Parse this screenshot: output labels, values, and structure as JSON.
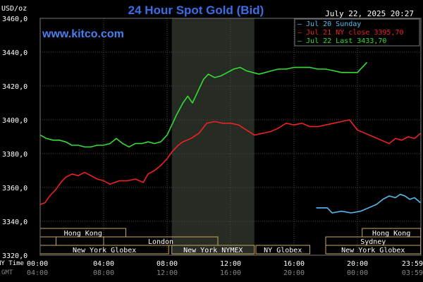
{
  "chart_data": {
    "type": "line",
    "title": "24 Hour Spot Gold (Bid)",
    "timestamp": "July 22, 2025 20:27",
    "watermark": "www.kitco.com",
    "ylabel": "USD/oz",
    "xlabel_top": "NY Time",
    "xlabel_bottom": "GMT",
    "ylim": [
      3320,
      3460
    ],
    "xlim": [
      0,
      24
    ],
    "grid": true,
    "y_ticks": [
      "3320,0",
      "3340,0",
      "3360,0",
      "3380,0",
      "3400,0",
      "3420,0",
      "3440,0",
      "3460,0"
    ],
    "y_tick_values": [
      3320,
      3340,
      3360,
      3380,
      3400,
      3420,
      3440,
      3460
    ],
    "x_ticks_ny": [
      "00:00",
      "04:00",
      "08:00",
      "12:00",
      "16:00",
      "20:00",
      "23:59"
    ],
    "x_ticks_gmt": [
      "04:00",
      "08:00",
      "12:00",
      "16:00",
      "20:00",
      "00:00",
      "03:59"
    ],
    "x_tick_values": [
      0,
      4,
      8,
      12,
      16,
      20,
      23.983
    ],
    "shaded_session": [
      8.3,
      13.5
    ],
    "legend": [
      {
        "text": "— Jul 20 Sunday",
        "color": "#55bbee"
      },
      {
        "text": "— Jul 21 NY close 3395,70",
        "color": "#ee2222"
      },
      {
        "text": "— Jul 22 Last 3433,70",
        "color": "#33dd33"
      }
    ],
    "series": [
      {
        "name": "Jul 20 Sunday",
        "color": "#55bbee",
        "x": [
          17.4,
          18.1,
          18.4,
          19.0,
          19.6,
          20.2,
          20.7,
          21.2,
          21.6,
          22.0,
          22.4,
          22.7,
          23.0,
          23.3,
          23.6,
          23.98
        ],
        "y": [
          3348,
          3348,
          3345,
          3346,
          3345,
          3346,
          3348,
          3350,
          3353,
          3355,
          3354,
          3356,
          3355,
          3353,
          3354,
          3351
        ]
      },
      {
        "name": "Jul 21 NY close 3395,70",
        "color": "#ee2222",
        "x": [
          0,
          0.3,
          0.6,
          1.0,
          1.3,
          1.6,
          2.0,
          2.4,
          2.8,
          3.2,
          3.6,
          4.0,
          4.4,
          5.0,
          5.5,
          6.0,
          6.5,
          6.8,
          7.2,
          7.6,
          8.0,
          8.3,
          8.7,
          9.0,
          9.5,
          10.0,
          10.5,
          11.0,
          11.5,
          12.0,
          12.5,
          13.0,
          13.5,
          14.0,
          14.5,
          15.0,
          15.5,
          16.0,
          16.5,
          17.0,
          17.5,
          18.0,
          18.5,
          19.0,
          19.5,
          20.0,
          20.5,
          21.0,
          21.5,
          22.0,
          22.4,
          22.8,
          23.2,
          23.6,
          23.98
        ],
        "y": [
          3350,
          3351,
          3355,
          3359,
          3363,
          3366,
          3368,
          3367,
          3369,
          3367,
          3365,
          3364,
          3362,
          3364,
          3364,
          3365,
          3363,
          3368,
          3370,
          3373,
          3377,
          3381,
          3385,
          3387,
          3389,
          3392,
          3398,
          3399,
          3398,
          3398,
          3397,
          3394,
          3391,
          3392,
          3393,
          3395,
          3398,
          3397,
          3398,
          3396,
          3396,
          3397,
          3398,
          3399,
          3400,
          3394,
          3392,
          3390,
          3388,
          3386,
          3389,
          3388,
          3390,
          3389,
          3392
        ]
      },
      {
        "name": "Jul 22 Last 3433,70",
        "color": "#33dd33",
        "x": [
          0,
          0.4,
          0.8,
          1.2,
          1.6,
          2.0,
          2.4,
          2.8,
          3.2,
          3.6,
          4.0,
          4.4,
          4.8,
          5.2,
          5.6,
          6.0,
          6.4,
          6.8,
          7.2,
          7.6,
          8.0,
          8.3,
          8.6,
          9.0,
          9.3,
          9.6,
          10.0,
          10.3,
          10.6,
          11.0,
          11.4,
          11.8,
          12.2,
          12.6,
          13.0,
          13.4,
          13.8,
          14.2,
          14.6,
          15.0,
          15.5,
          16.0,
          16.5,
          17.0,
          17.5,
          18.0,
          18.5,
          19.0,
          19.5,
          20.0,
          20.3,
          20.6
        ],
        "y": [
          3391,
          3389,
          3388,
          3388,
          3387,
          3385,
          3385,
          3384,
          3384,
          3385,
          3385,
          3386,
          3389,
          3386,
          3384,
          3386,
          3386,
          3387,
          3386,
          3387,
          3391,
          3397,
          3403,
          3410,
          3414,
          3410,
          3418,
          3424,
          3427,
          3425,
          3426,
          3428,
          3430,
          3431,
          3429,
          3428,
          3427,
          3428,
          3429,
          3430,
          3430,
          3431,
          3431,
          3431,
          3430,
          3430,
          3429,
          3428,
          3428,
          3428,
          3431,
          3434
        ]
      }
    ],
    "sessions": [
      {
        "label": "Hong Kong",
        "start": 0,
        "end": 5.4,
        "row": 0
      },
      {
        "label": "Hong Kong",
        "start": 20.3,
        "end": 23.98,
        "row": 0
      },
      {
        "label": "",
        "start": 0,
        "end": 1.0,
        "row": 1
      },
      {
        "label": "London",
        "start": 4.0,
        "end": 11.2,
        "row": 1
      },
      {
        "label": "Sydney",
        "start": 18.0,
        "end": 23.98,
        "row": 1
      },
      {
        "label": "New York Globex",
        "start": 0,
        "end": 8.1,
        "row": 2
      },
      {
        "label": "New York NYMEX",
        "start": 8.3,
        "end": 13.5,
        "row": 2
      },
      {
        "label": "NY Globex",
        "start": 13.6,
        "end": 17.0,
        "row": 2
      },
      {
        "label": "New York Globex",
        "start": 18.0,
        "end": 23.98,
        "row": 2
      }
    ]
  }
}
